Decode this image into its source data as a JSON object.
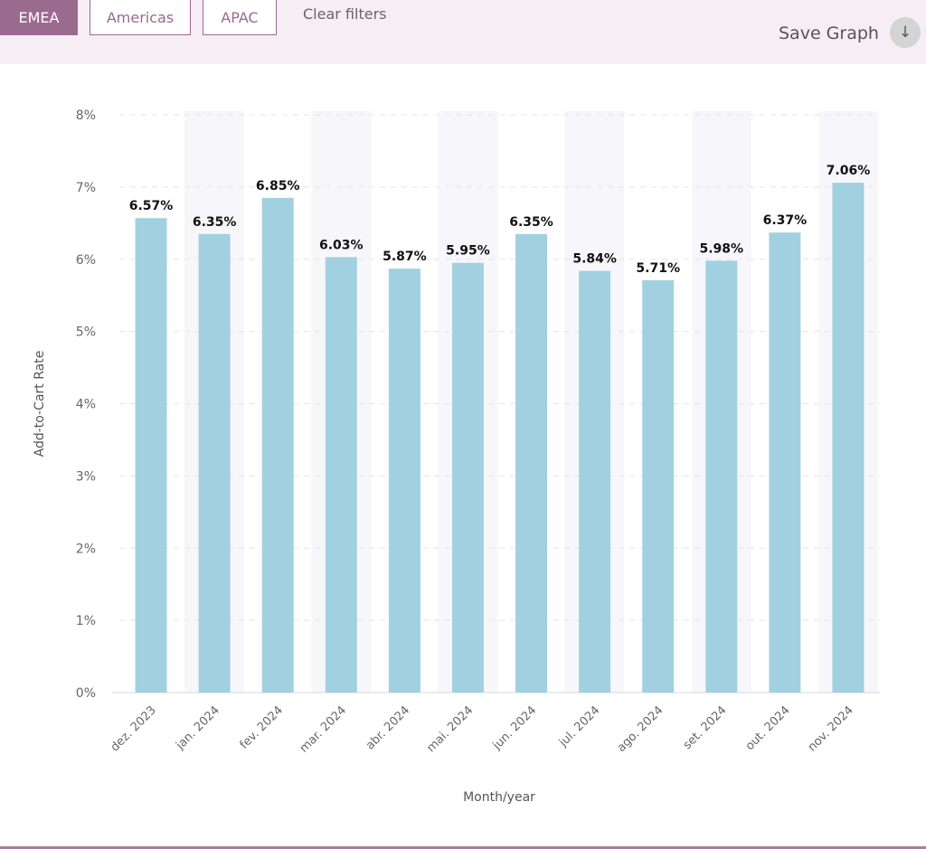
{
  "filters": {
    "emea": "EMEA",
    "americas": "Americas",
    "apac": "APAC",
    "clear": "Clear filters",
    "active": "EMEA"
  },
  "toolbar": {
    "save_label": "Save Graph",
    "save_icon": "download-arrow-icon",
    "save_glyph": "↓"
  },
  "chart_data": {
    "type": "bar",
    "categories": [
      "dez. 2023",
      "jan. 2024",
      "fev. 2024",
      "mar. 2024",
      "abr. 2024",
      "mai. 2024",
      "jun. 2024",
      "jul. 2024",
      "ago. 2024",
      "set. 2024",
      "out. 2024",
      "nov. 2024"
    ],
    "values": [
      6.57,
      6.35,
      6.85,
      6.03,
      5.87,
      5.95,
      6.35,
      5.84,
      5.71,
      5.98,
      6.37,
      7.06
    ],
    "data_labels": [
      "6.57%",
      "6.35%",
      "6.85%",
      "6.03%",
      "5.87%",
      "5.95%",
      "6.35%",
      "5.84%",
      "5.71%",
      "5.98%",
      "6.37%",
      "7.06%"
    ],
    "xlabel": "Month/year",
    "ylabel": "Add-to-Cart Rate",
    "ylim": [
      0,
      8
    ],
    "yticks": [
      "0%",
      "1%",
      "2%",
      "3%",
      "4%",
      "5%",
      "6%",
      "7%",
      "8%"
    ],
    "grid": true,
    "bar_color": "#a1d1e0",
    "band_color": "#f7f7fb"
  }
}
